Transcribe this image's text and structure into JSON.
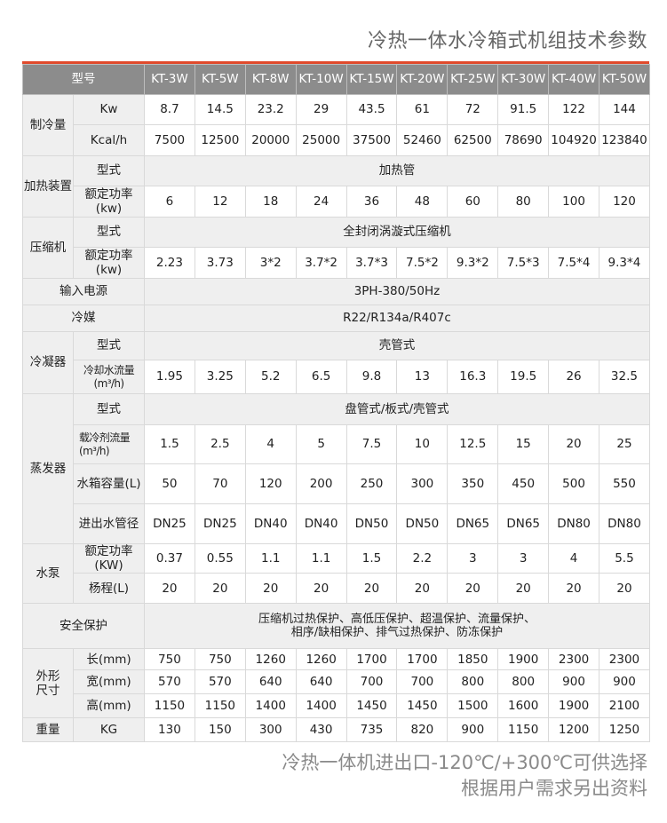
{
  "title": "冷热一体水冷箱式机组技术参数",
  "header": {
    "label": "型号",
    "models": [
      "KT-3W",
      "KT-5W",
      "KT-8W",
      "KT-10W",
      "KT-15W",
      "KT-20W",
      "KT-25W",
      "KT-30W",
      "KT-40W",
      "KT-50W"
    ]
  },
  "sections": [
    {
      "label": "制冷量",
      "rows": [
        {
          "sub": "Kw",
          "values": [
            "8.7",
            "14.5",
            "23.2",
            "29",
            "43.5",
            "61",
            "72",
            "91.5",
            "122",
            "144"
          ]
        },
        {
          "sub": "Kcal/h",
          "values": [
            "7500",
            "12500",
            "20000",
            "25000",
            "37500",
            "52460",
            "62500",
            "78690",
            "104920",
            "123840"
          ]
        }
      ]
    },
    {
      "label": "加热装置",
      "rows": [
        {
          "sub": "型式",
          "merged": "加热管"
        },
        {
          "sub": "额定功率(kw)",
          "values": [
            "6",
            "12",
            "18",
            "24",
            "36",
            "48",
            "60",
            "80",
            "100",
            "120"
          ]
        }
      ]
    },
    {
      "label": "压缩机",
      "rows": [
        {
          "sub": "型式",
          "merged": "全封闭涡漩式压缩机"
        },
        {
          "sub": "额定功率(kw)",
          "values": [
            "2.23",
            "3.73",
            "3*2",
            "3.7*2",
            "3.7*3",
            "7.5*2",
            "9.3*2",
            "7.5*3",
            "7.5*4",
            "9.3*4"
          ]
        }
      ]
    },
    {
      "label": "输入电源",
      "full": true,
      "merged": "3PH-380/50Hz"
    },
    {
      "label": "冷媒",
      "full": true,
      "merged": "R22/R134a/R407c"
    },
    {
      "label": "冷凝器",
      "rows": [
        {
          "sub": "型式",
          "merged": "壳管式"
        },
        {
          "sub": "冷却水流量(m³/h)",
          "values": [
            "1.95",
            "3.25",
            "5.2",
            "6.5",
            "9.8",
            "13",
            "16.3",
            "19.5",
            "26",
            "32.5"
          ]
        }
      ]
    },
    {
      "label": "蒸发器",
      "rows": [
        {
          "sub": "型式",
          "merged": "盘管式/板式/壳管式"
        },
        {
          "sub": "载冷剂流量(m³/h)",
          "values": [
            "1.5",
            "2.5",
            "4",
            "5",
            "7.5",
            "10",
            "12.5",
            "15",
            "20",
            "25"
          ]
        },
        {
          "sub": "水箱容量(L)",
          "values": [
            "50",
            "70",
            "120",
            "200",
            "250",
            "300",
            "350",
            "450",
            "500",
            "550"
          ]
        },
        {
          "sub": "进出水管径",
          "values": [
            "DN25",
            "DN25",
            "DN40",
            "DN40",
            "DN50",
            "DN50",
            "DN65",
            "DN65",
            "DN80",
            "DN80"
          ]
        }
      ]
    },
    {
      "label": "水泵",
      "rows": [
        {
          "sub": "额定功率(KW)",
          "values": [
            "0.37",
            "0.55",
            "1.1",
            "1.1",
            "1.5",
            "2.2",
            "3",
            "3",
            "4",
            "5.5"
          ]
        },
        {
          "sub": "杨程(L)",
          "values": [
            "20",
            "20",
            "20",
            "20",
            "20",
            "20",
            "20",
            "20",
            "20",
            "20"
          ]
        }
      ]
    },
    {
      "label": "安全保护",
      "full": true,
      "merged": "压缩机过热保护、高低压保护、超温保护、流量保护、\n相序/缺相保护、排气过热保护、防冻保护"
    },
    {
      "label": "外形尺寸",
      "rows": [
        {
          "sub": "长(mm)",
          "values": [
            "750",
            "750",
            "1260",
            "1260",
            "1700",
            "1700",
            "1850",
            "1900",
            "2300",
            "2300"
          ]
        },
        {
          "sub": "宽(mm)",
          "values": [
            "570",
            "570",
            "640",
            "640",
            "700",
            "700",
            "800",
            "800",
            "900",
            "900"
          ]
        },
        {
          "sub": "高(mm)",
          "values": [
            "1150",
            "1150",
            "1400",
            "1400",
            "1450",
            "1450",
            "1500",
            "1600",
            "1900",
            "2100"
          ]
        }
      ]
    },
    {
      "label": "重量",
      "rows": [
        {
          "sub": "KG",
          "values": [
            "130",
            "150",
            "300",
            "430",
            "735",
            "820",
            "900",
            "1150",
            "1200",
            "1250"
          ]
        }
      ]
    }
  ],
  "footer": {
    "line1": "冷热一体机进出口-120℃/+300℃可供选择",
    "line2": "根据用户需求另出资料"
  },
  "colors": {
    "accent": "#e04a2c",
    "header_bg": "#8c8c8c",
    "label_bg": "#efefef"
  }
}
